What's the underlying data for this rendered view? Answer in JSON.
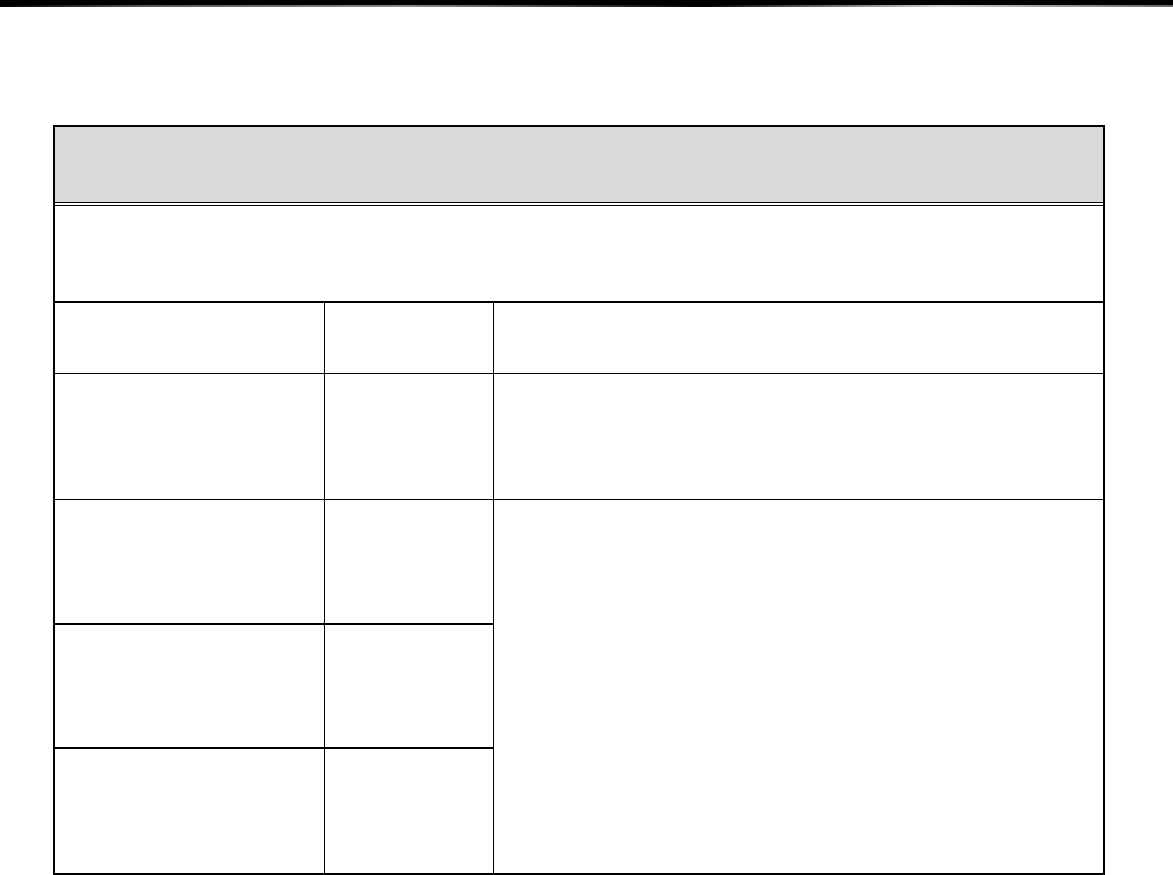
{
  "colors": {
    "header_fill": "#d9d9d9",
    "border": "#000000",
    "background": "#ffffff"
  }
}
